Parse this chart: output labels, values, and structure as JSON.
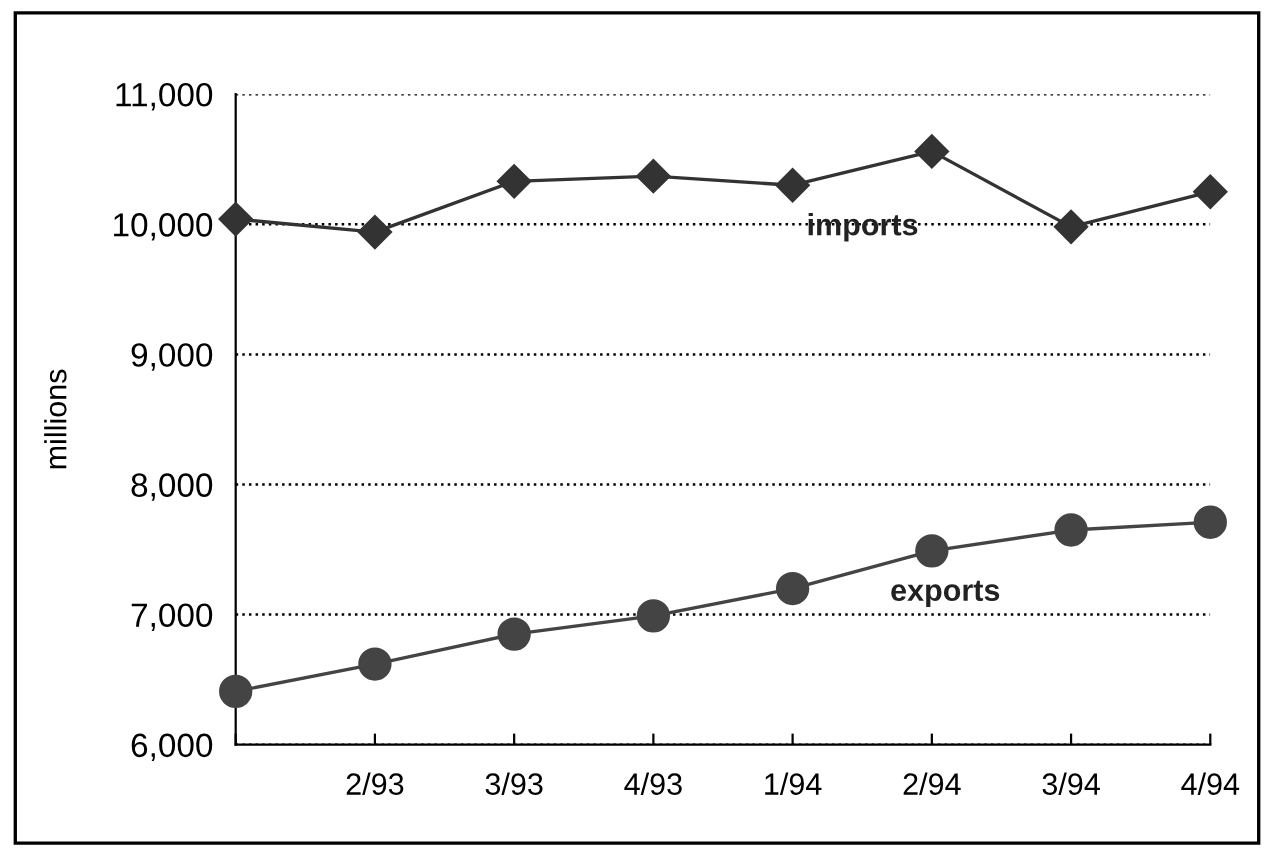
{
  "chart_data": {
    "type": "line",
    "ylabel": "millions",
    "categories": [
      null,
      "2/93",
      "3/93",
      "4/93",
      "1/94",
      "2/94",
      "3/94",
      "4/94"
    ],
    "series": [
      {
        "name": "imports",
        "color": "#333333",
        "marker": "diamond",
        "values": [
          10040,
          9940,
          10330,
          10370,
          10300,
          10560,
          9980,
          10250
        ]
      },
      {
        "name": "exports",
        "color": "#444444",
        "marker": "circle",
        "values": [
          6410,
          6620,
          6850,
          6990,
          7200,
          7490,
          7650,
          7710
        ]
      }
    ],
    "ylim": [
      6000,
      11000
    ],
    "yticks": [
      {
        "value": 6000,
        "label": "6,000"
      },
      {
        "value": 7000,
        "label": "7,000"
      },
      {
        "value": 8000,
        "label": "8,000"
      },
      {
        "value": 9000,
        "label": "9,000"
      },
      {
        "value": 10000,
        "label": "10,000"
      },
      {
        "value": 11000,
        "label": "11,000"
      }
    ],
    "grid": "y",
    "legend": false,
    "line_style": "solid"
  }
}
